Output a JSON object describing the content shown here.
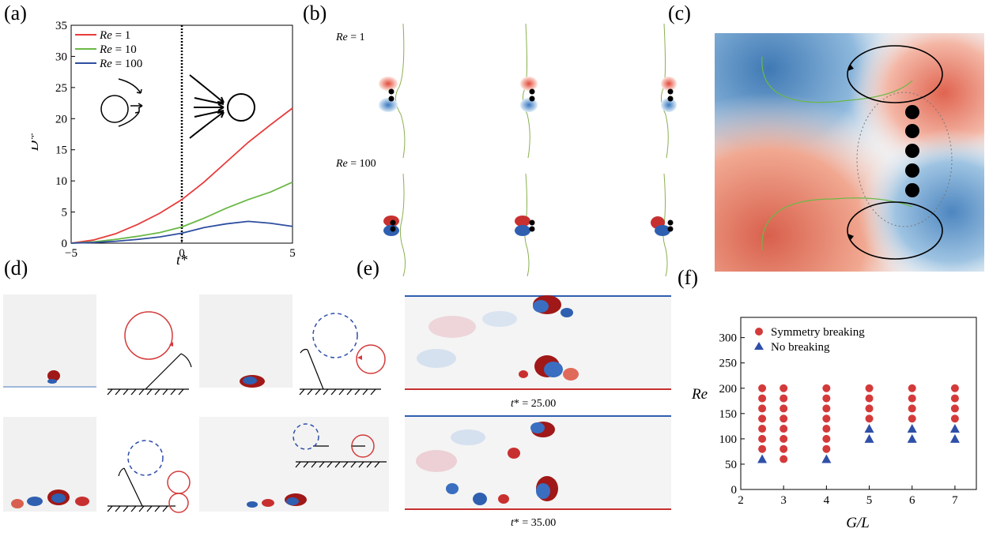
{
  "panels": {
    "a": "(a)",
    "b": "(b)",
    "c": "(c)",
    "d": "(d)",
    "e": "(e)",
    "f": "(f)"
  },
  "panel_b": {
    "row1_label_var": "Re",
    "row1_label_val": " = 1",
    "row2_label_var": "Re",
    "row2_label_val": " = 100"
  },
  "panel_e": {
    "caption1_var": "t",
    "caption1_val": "* = 25.00",
    "caption2_var": "t",
    "caption2_val": "* = 35.00"
  },
  "colors": {
    "red": "#e83a3a",
    "green": "#6ab845",
    "blue": "#2e4ea0",
    "marker_red": "#d43a3a",
    "marker_blue": "#2f4fa8"
  },
  "chart_data": [
    {
      "id": "a",
      "type": "line",
      "xlabel": "t*",
      "ylabel": "D*",
      "xlim": [
        -5,
        5
      ],
      "ylim": [
        0,
        35
      ],
      "xticks": [
        -5,
        0,
        5
      ],
      "yticks": [
        0,
        5,
        10,
        15,
        20,
        25,
        30,
        35
      ],
      "vline": 0,
      "series": [
        {
          "name": "Re = 1",
          "name_var": "Re",
          "name_val": " = 1",
          "color": "#e83a3a",
          "x": [
            -5,
            -4,
            -3,
            -2,
            -1,
            0,
            1,
            2,
            3,
            4,
            5
          ],
          "y": [
            0,
            0.5,
            1.5,
            3,
            4.8,
            7,
            9.8,
            13,
            16.2,
            19,
            21.7
          ]
        },
        {
          "name": "Re = 10",
          "name_var": "Re",
          "name_val": " = 10",
          "color": "#6ab845",
          "x": [
            -5,
            -4,
            -3,
            -2,
            -1,
            0,
            1,
            2,
            3,
            4,
            5
          ],
          "y": [
            0,
            0.2,
            0.6,
            1.1,
            1.7,
            2.6,
            4,
            5.6,
            7,
            8.2,
            9.8
          ]
        },
        {
          "name": "Re = 100",
          "name_var": "Re",
          "name_val": " = 100",
          "color": "#2e4ea0",
          "x": [
            -5,
            -4,
            -3,
            -2,
            -1,
            0,
            1,
            2,
            3,
            4,
            5
          ],
          "y": [
            0,
            0.1,
            0.3,
            0.6,
            1,
            1.6,
            2.5,
            3.1,
            3.5,
            3.2,
            2.7
          ]
        }
      ]
    },
    {
      "id": "f",
      "type": "scatter",
      "xlabel": "G/L",
      "ylabel": "Re",
      "xlim": [
        2,
        7.5
      ],
      "ylim": [
        0,
        340
      ],
      "xticks": [
        2,
        3,
        4,
        5,
        6,
        7
      ],
      "yticks": [
        0,
        50,
        100,
        150,
        200,
        250,
        300
      ],
      "series": [
        {
          "name": "Symmetry breaking",
          "marker": "circle",
          "color": "#d43a3a",
          "points": [
            [
              2.5,
              80
            ],
            [
              2.5,
              100
            ],
            [
              2.5,
              120
            ],
            [
              2.5,
              140
            ],
            [
              2.5,
              160
            ],
            [
              2.5,
              180
            ],
            [
              2.5,
              200
            ],
            [
              3,
              60
            ],
            [
              3,
              80
            ],
            [
              3,
              100
            ],
            [
              3,
              120
            ],
            [
              3,
              140
            ],
            [
              3,
              160
            ],
            [
              3,
              180
            ],
            [
              3,
              200
            ],
            [
              4,
              80
            ],
            [
              4,
              100
            ],
            [
              4,
              120
            ],
            [
              4,
              140
            ],
            [
              4,
              160
            ],
            [
              4,
              180
            ],
            [
              4,
              200
            ],
            [
              5,
              140
            ],
            [
              5,
              160
            ],
            [
              5,
              180
            ],
            [
              5,
              200
            ],
            [
              6,
              140
            ],
            [
              6,
              160
            ],
            [
              6,
              180
            ],
            [
              6,
              200
            ],
            [
              7,
              140
            ],
            [
              7,
              160
            ],
            [
              7,
              180
            ],
            [
              7,
              200
            ]
          ]
        },
        {
          "name": "No breaking",
          "marker": "triangle",
          "color": "#2f4fa8",
          "points": [
            [
              2.5,
              60
            ],
            [
              4,
              60
            ],
            [
              5,
              100
            ],
            [
              5,
              120
            ],
            [
              6,
              100
            ],
            [
              6,
              120
            ],
            [
              7,
              100
            ],
            [
              7,
              120
            ]
          ]
        }
      ]
    }
  ]
}
